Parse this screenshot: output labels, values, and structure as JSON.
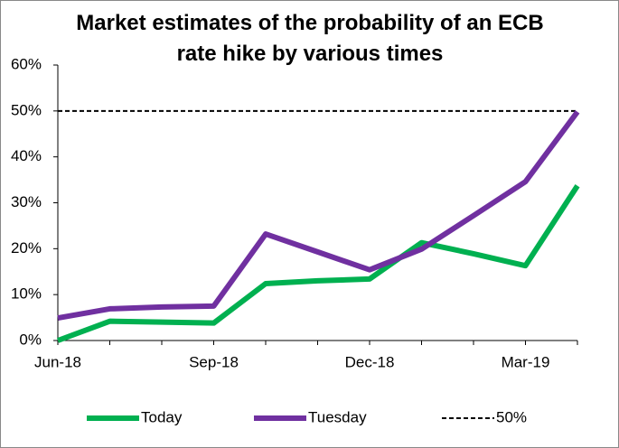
{
  "chart_data": {
    "type": "line",
    "title": "Market estimates of the probability of an ECB rate hike by various times",
    "categories": [
      "Jun-18",
      null,
      null,
      "Sep-18",
      null,
      null,
      "Dec-18",
      null,
      null,
      "Mar-19",
      null
    ],
    "series": [
      {
        "name": "Today",
        "color": "#00b050",
        "values": [
          0,
          4.2,
          4.0,
          3.8,
          12.4,
          13.0,
          13.4,
          21.3,
          18.9,
          16.3,
          33.7
        ]
      },
      {
        "name": "Tuesday",
        "color": "#7030a0",
        "values": [
          4.9,
          6.9,
          7.3,
          7.5,
          23.2,
          19.3,
          15.4,
          19.9,
          27.2,
          34.6,
          49.8
        ]
      }
    ],
    "reference": {
      "name": "50%",
      "value": 50,
      "color": "#000000"
    },
    "ylim": [
      0,
      60
    ],
    "yticks": [
      {
        "value": 0,
        "label": "0%"
      },
      {
        "value": 10,
        "label": "10%"
      },
      {
        "value": 20,
        "label": "20%"
      },
      {
        "value": 30,
        "label": "30%"
      },
      {
        "value": 40,
        "label": "40%"
      },
      {
        "value": 50,
        "label": "50%"
      },
      {
        "value": 60,
        "label": "60%"
      }
    ]
  }
}
